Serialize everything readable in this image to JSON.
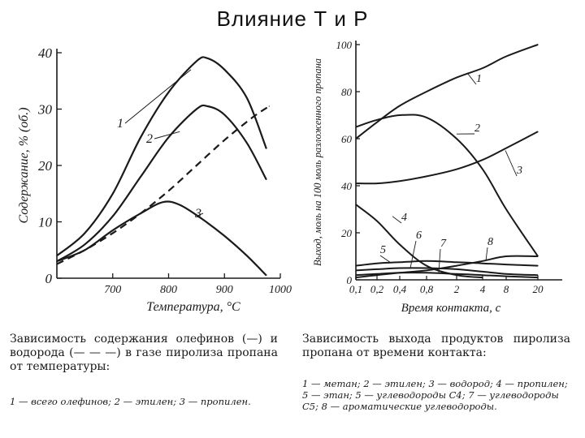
{
  "slide": {
    "title": "Влияние Т и Р"
  },
  "chart_data": [
    {
      "type": "line",
      "xlabel": "Температура, °С",
      "ylabel": "Содержание, % (об.)",
      "xlim": [
        600,
        1000
      ],
      "ylim": [
        0,
        40
      ],
      "xticks": [
        "700",
        "800",
        "900",
        "1000"
      ],
      "yticks": [
        "0",
        "10",
        "20",
        "30",
        "40"
      ],
      "caption": "Зависимость содержания олефинов (—) и водорода (— — —) в газе пиролиза пропана от температуры:",
      "legend_note": "1 — всего олефинов; 2 — этилен; 3 — пропилен.",
      "series": [
        {
          "name": "1",
          "style": "solid",
          "x": [
            600,
            650,
            700,
            750,
            800,
            850,
            870,
            900,
            940,
            975
          ],
          "y": [
            4,
            8,
            15,
            25,
            33,
            38.5,
            39,
            37,
            32,
            23
          ]
        },
        {
          "name": "2",
          "style": "solid",
          "x": [
            600,
            650,
            700,
            750,
            800,
            850,
            870,
            900,
            940,
            975
          ],
          "y": [
            3,
            6,
            11,
            18,
            25,
            30,
            30.5,
            29,
            24,
            17.5
          ]
        },
        {
          "name": "3",
          "style": "solid",
          "x": [
            600,
            650,
            700,
            750,
            790,
            820,
            860,
            900,
            940,
            975
          ],
          "y": [
            3,
            5,
            8.5,
            11.5,
            13.5,
            13,
            10.5,
            7.5,
            4,
            0.5
          ]
        },
        {
          "name": "",
          "style": "dashed",
          "x": [
            600,
            650,
            700,
            750,
            800,
            850,
            900,
            950,
            980
          ],
          "y": [
            2.5,
            5,
            8,
            11.5,
            15.5,
            20,
            24.5,
            28.5,
            30.5
          ]
        }
      ]
    },
    {
      "type": "line",
      "xlabel": "Время контакта, с",
      "ylabel": "Выход, моль на 100 моль разложенного пропана",
      "ylim": [
        0,
        100
      ],
      "xticks": [
        "0,1",
        "0,2",
        "0,4",
        "0,8",
        "2",
        "4",
        "8",
        "20"
      ],
      "yticks": [
        "0",
        "20",
        "40",
        "60",
        "80",
        "100"
      ],
      "caption": "Зависимость выхода продуктов пиролиза пропана от времени контакта:",
      "legend_note": "1 — метан; 2 — этилен; 3 — водород; 4 — пропилен; 5 — этан; 5 — углеводороды С4; 7 — углеводороды С5; 8 — ароматические углеводороды.",
      "series": [
        {
          "name": "1",
          "x": [
            0.1,
            0.2,
            0.4,
            0.8,
            2,
            4,
            8,
            20
          ],
          "y": [
            60,
            67,
            74,
            80,
            86,
            90,
            95,
            100
          ]
        },
        {
          "name": "2",
          "x": [
            0.1,
            0.2,
            0.4,
            0.8,
            2,
            4,
            8,
            20
          ],
          "y": [
            65,
            68,
            70,
            69,
            60,
            47,
            30,
            10
          ]
        },
        {
          "name": "3",
          "x": [
            0.1,
            0.2,
            0.4,
            0.8,
            2,
            4,
            8,
            20
          ],
          "y": [
            41,
            41,
            42,
            44,
            47,
            51,
            56,
            63
          ]
        },
        {
          "name": "4",
          "x": [
            0.1,
            0.2,
            0.4,
            0.8,
            2,
            4
          ],
          "y": [
            32,
            25,
            15,
            6,
            2,
            1
          ]
        },
        {
          "name": "5",
          "x": [
            0.1,
            0.2,
            0.4,
            0.8,
            2,
            4,
            8,
            20
          ],
          "y": [
            6,
            7,
            7.5,
            8,
            7.5,
            7,
            6.5,
            6
          ]
        },
        {
          "name": "6",
          "x": [
            0.1,
            0.2,
            0.4,
            0.8,
            2,
            4,
            8,
            20
          ],
          "y": [
            4,
            4.5,
            5,
            5,
            4.5,
            3.5,
            2.5,
            2
          ]
        },
        {
          "name": "7",
          "x": [
            0.1,
            0.2,
            0.4,
            0.8,
            2,
            4,
            8,
            20
          ],
          "y": [
            2,
            2.5,
            3,
            3,
            2.5,
            2,
            1.5,
            1
          ]
        },
        {
          "name": "8",
          "x": [
            0.1,
            0.2,
            0.4,
            0.8,
            2,
            4,
            8,
            20
          ],
          "y": [
            1,
            2,
            3,
            4,
            6,
            8,
            10,
            10
          ]
        }
      ]
    }
  ]
}
